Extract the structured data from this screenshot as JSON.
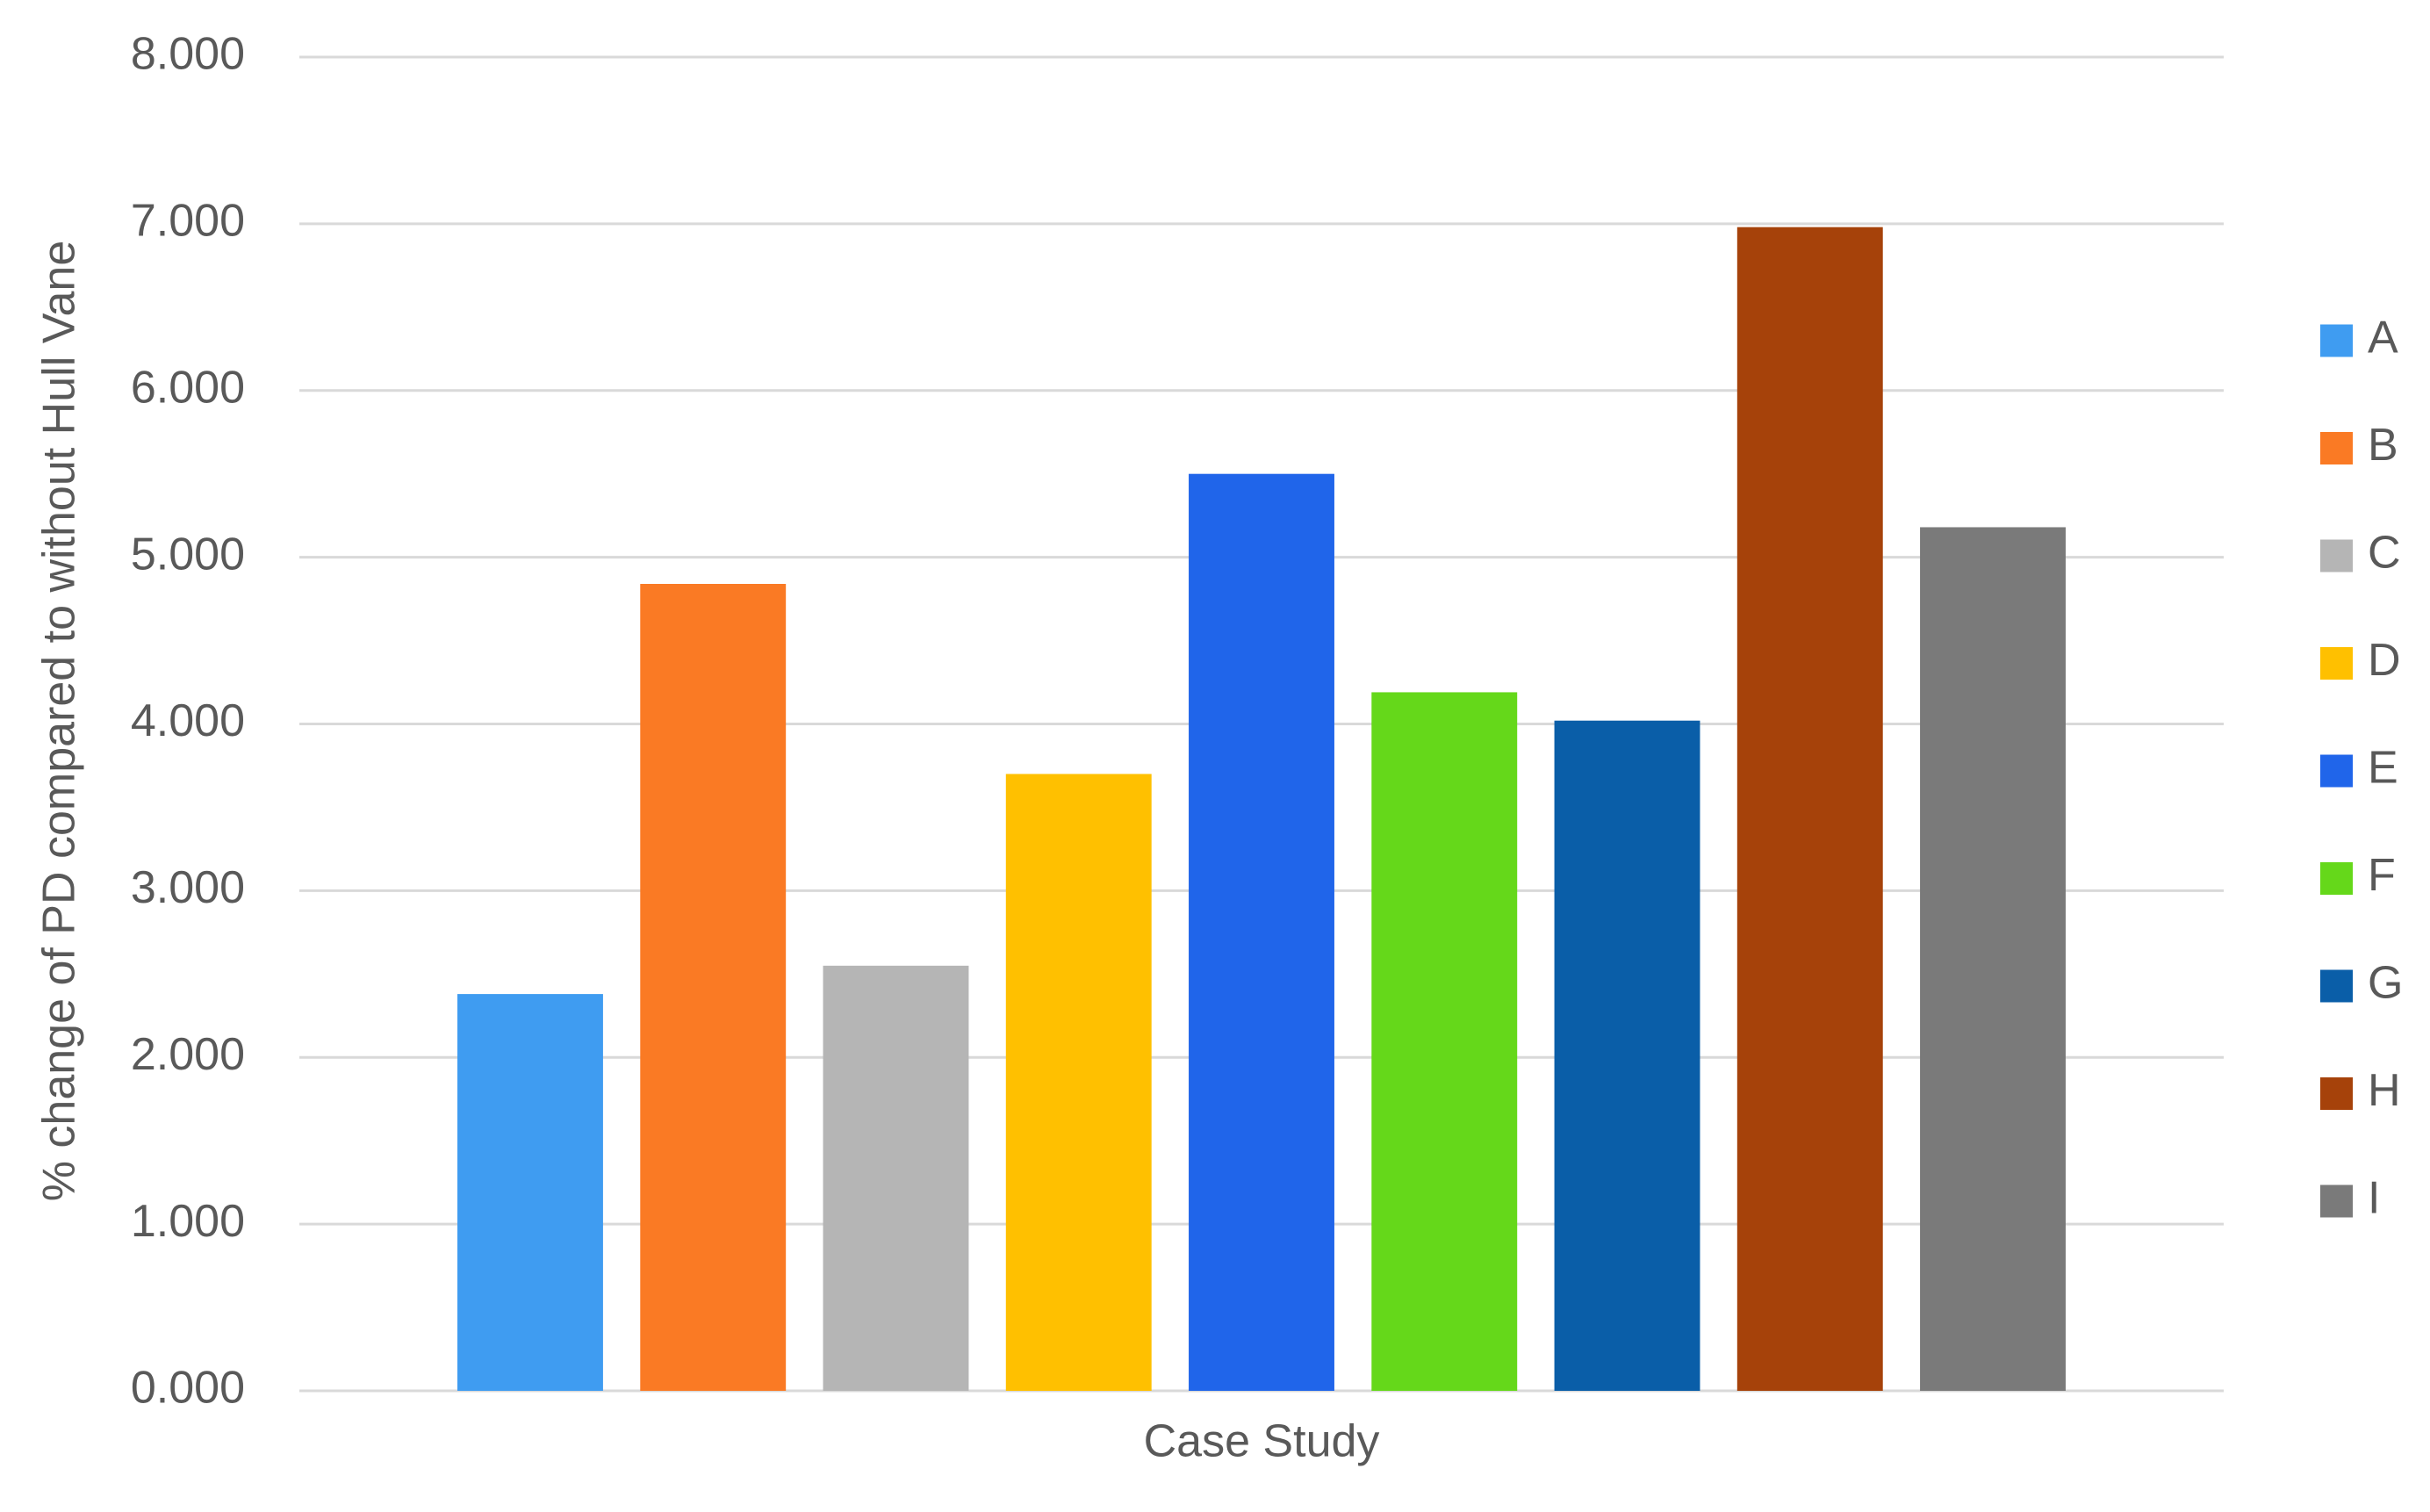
{
  "chart_data": {
    "type": "bar",
    "y_label": "% change of PD compared to without Hull Vane",
    "x_label": "Case Study",
    "series": [
      {
        "name": "A",
        "color": "#3f9cf1",
        "values": [
          2.38
        ]
      },
      {
        "name": "B",
        "color": "#fa7a24",
        "values": [
          4.84
        ]
      },
      {
        "name": "C",
        "color": "#b5b5b5",
        "values": [
          2.55
        ]
      },
      {
        "name": "D",
        "color": "#ffc000",
        "values": [
          3.7
        ]
      },
      {
        "name": "E",
        "color": "#2065ea",
        "values": [
          5.5
        ]
      },
      {
        "name": "F",
        "color": "#65d81a",
        "values": [
          4.19
        ]
      },
      {
        "name": "G",
        "color": "#0a5ea8",
        "values": [
          4.02
        ]
      },
      {
        "name": "H",
        "color": "#a6420a",
        "values": [
          6.98
        ]
      },
      {
        "name": "I",
        "color": "#7a7a7a",
        "values": [
          5.18
        ]
      }
    ],
    "ylim": [
      0,
      8
    ],
    "yticks": [
      {
        "value": 0,
        "label": "0.000"
      },
      {
        "value": 1,
        "label": "1.000"
      },
      {
        "value": 2,
        "label": "2.000"
      },
      {
        "value": 3,
        "label": "3.000"
      },
      {
        "value": 4,
        "label": "4.000"
      },
      {
        "value": 5,
        "label": "5.000"
      },
      {
        "value": 6,
        "label": "6.000"
      },
      {
        "value": 7,
        "label": "7.000"
      },
      {
        "value": 8,
        "label": "8.000"
      }
    ],
    "grid": true,
    "legend": "right"
  }
}
